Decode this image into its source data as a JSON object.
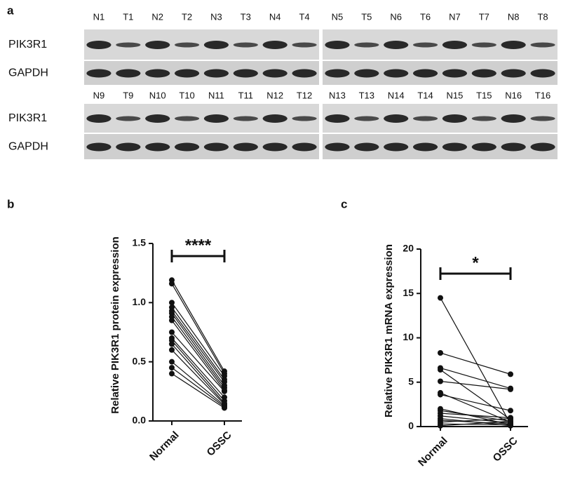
{
  "panel_labels": [
    "a",
    "b",
    "c"
  ],
  "blot": {
    "sections": [
      {
        "rows": [
          "PIK3R1",
          "GAPDH"
        ],
        "lanes_left": [
          "N1",
          "T1",
          "N2",
          "T2",
          "N3",
          "T3",
          "N4",
          "T4"
        ],
        "lanes_right": [
          "N5",
          "T5",
          "N6",
          "T6",
          "N7",
          "T7",
          "N8",
          "T8"
        ]
      },
      {
        "rows": [
          "PIK3R1",
          "GAPDH"
        ],
        "lanes_left": [
          "N9",
          "T9",
          "N10",
          "T10",
          "N11",
          "T11",
          "N12",
          "T12"
        ],
        "lanes_right": [
          "N13",
          "T13",
          "N14",
          "T14",
          "N15",
          "T15",
          "N16",
          "T16"
        ]
      }
    ]
  },
  "chart_data": [
    {
      "type": "paired",
      "y_label": "Relative PIK3R1 protein expression",
      "annotation": "****",
      "categories": [
        "Normal",
        "OSSC"
      ],
      "color": "#111111",
      "ylim": [
        0,
        1.5
      ],
      "yticks": [
        {
          "value": 0,
          "label": "0.0"
        },
        0.5,
        {
          "value": 1,
          "label": "1.0"
        },
        1.5
      ],
      "values": [
        [
          1.19,
          0.42
        ],
        [
          1.16,
          0.4
        ],
        [
          1.0,
          0.38
        ],
        [
          0.96,
          0.35
        ],
        [
          0.93,
          0.33
        ],
        [
          0.91,
          0.3
        ],
        [
          0.88,
          0.28
        ],
        [
          0.85,
          0.26
        ],
        [
          0.75,
          0.25
        ],
        [
          0.7,
          0.2
        ],
        [
          0.68,
          0.17
        ],
        [
          0.65,
          0.15
        ],
        [
          0.6,
          0.14
        ],
        [
          0.5,
          0.13
        ],
        [
          0.45,
          0.12
        ],
        [
          0.4,
          0.11
        ]
      ]
    },
    {
      "type": "paired",
      "y_label": "Relative PIK3R1 mRNA expression",
      "annotation": "*",
      "categories": [
        "Normal",
        "OSSC"
      ],
      "color": "#111111",
      "ylim": [
        0,
        20
      ],
      "yticks": [
        0,
        5,
        10,
        15,
        20
      ],
      "values": [
        [
          14.5,
          0.3
        ],
        [
          8.3,
          5.9
        ],
        [
          6.6,
          4.3
        ],
        [
          6.4,
          0.8
        ],
        [
          5.1,
          4.2
        ],
        [
          3.8,
          0.5
        ],
        [
          3.6,
          1.8
        ],
        [
          2.0,
          0.2
        ],
        [
          1.8,
          0.6
        ],
        [
          1.5,
          1.0
        ],
        [
          1.2,
          0.4
        ],
        [
          0.9,
          0.1
        ],
        [
          0.7,
          0.3
        ],
        [
          0.5,
          0.9
        ],
        [
          0.3,
          0.2
        ],
        [
          0.1,
          0.6
        ]
      ]
    }
  ]
}
